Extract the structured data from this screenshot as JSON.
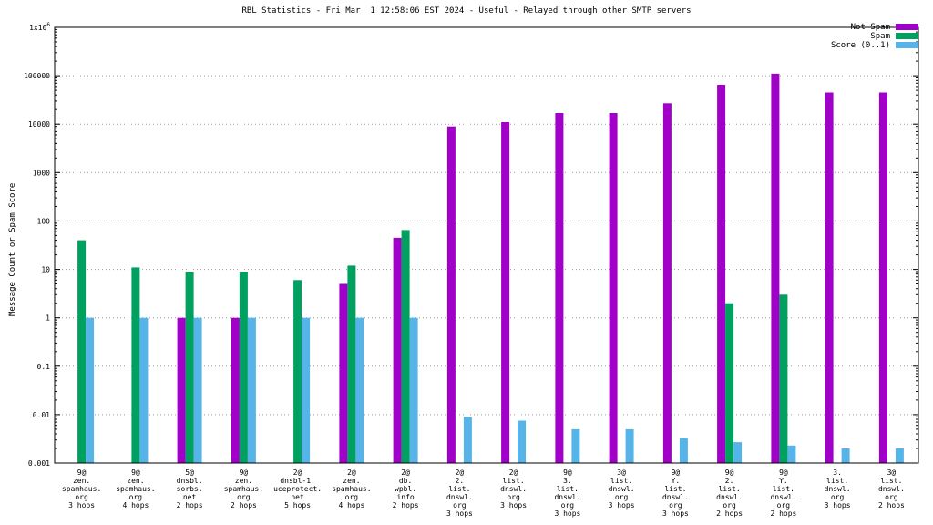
{
  "chart_data": {
    "type": "bar",
    "title": "RBL Statistics - Fri Mar  1 12:58:06 EST 2024 - Useful - Relayed through other SMTP servers",
    "ylabel": "Message Count or Spam Score",
    "yscale": "log",
    "ylim": [
      0.001,
      1000000
    ],
    "ytick_labels": [
      "0.001",
      "0.01",
      "0.1",
      "1",
      "10",
      "100",
      "1000",
      "10000",
      "100000",
      "1x10^6"
    ],
    "grid": "horizontal-dotted",
    "legend_position": "top-right",
    "categories": [
      [
        "9@",
        "zen.",
        "spamhaus.",
        "org",
        "3 hops"
      ],
      [
        "9@",
        "zen.",
        "spamhaus.",
        "org",
        "4 hops"
      ],
      [
        "5@",
        "dnsbl.",
        "sorbs.",
        "net",
        "2 hops"
      ],
      [
        "9@",
        "zen.",
        "spamhaus.",
        "org",
        "2 hops"
      ],
      [
        "2@",
        "dnsbl-1.",
        "uceprotect.",
        "net",
        "5 hops"
      ],
      [
        "2@",
        "zen.",
        "spamhaus.",
        "org",
        "4 hops"
      ],
      [
        "2@",
        "db.",
        "wpbl.",
        "info",
        "2 hops"
      ],
      [
        "2@",
        "2.",
        "list.",
        "dnswl.",
        "org",
        "3 hops"
      ],
      [
        "2@",
        "list.",
        "dnswl.",
        "org",
        "3 hops"
      ],
      [
        "9@",
        "3.",
        "list.",
        "dnswl.",
        "org",
        "3 hops"
      ],
      [
        "3@",
        "list.",
        "dnswl.",
        "org",
        "3 hops"
      ],
      [
        "9@",
        "Y.",
        "list.",
        "dnswl.",
        "org",
        "3 hops"
      ],
      [
        "9@",
        "2.",
        "list.",
        "dnswl.",
        "org",
        "2 hops"
      ],
      [
        "9@",
        "Y.",
        "list.",
        "dnswl.",
        "org",
        "2 hops"
      ],
      [
        "3.",
        "list.",
        "dnswl.",
        "org",
        "3 hops"
      ],
      [
        "3@",
        "list.",
        "dnswl.",
        "org",
        "2 hops"
      ]
    ],
    "series": [
      {
        "name": "Not Spam",
        "color": "#a000c8",
        "values": [
          null,
          null,
          1,
          1,
          null,
          5,
          45,
          9000,
          11000,
          17000,
          17000,
          27000,
          65000,
          110000,
          45000,
          45000
        ]
      },
      {
        "name": "Spam",
        "color": "#00a060",
        "values": [
          40,
          11,
          9,
          9,
          6,
          12,
          65,
          null,
          null,
          null,
          null,
          null,
          2,
          3,
          null,
          null
        ]
      },
      {
        "name": "Score (0..1)",
        "color": "#56b4e9",
        "values": [
          1,
          1,
          1,
          1,
          1,
          1,
          1,
          0.009,
          0.0075,
          0.005,
          0.005,
          0.0033,
          0.0027,
          0.0023,
          0.002,
          0.002
        ]
      }
    ]
  }
}
